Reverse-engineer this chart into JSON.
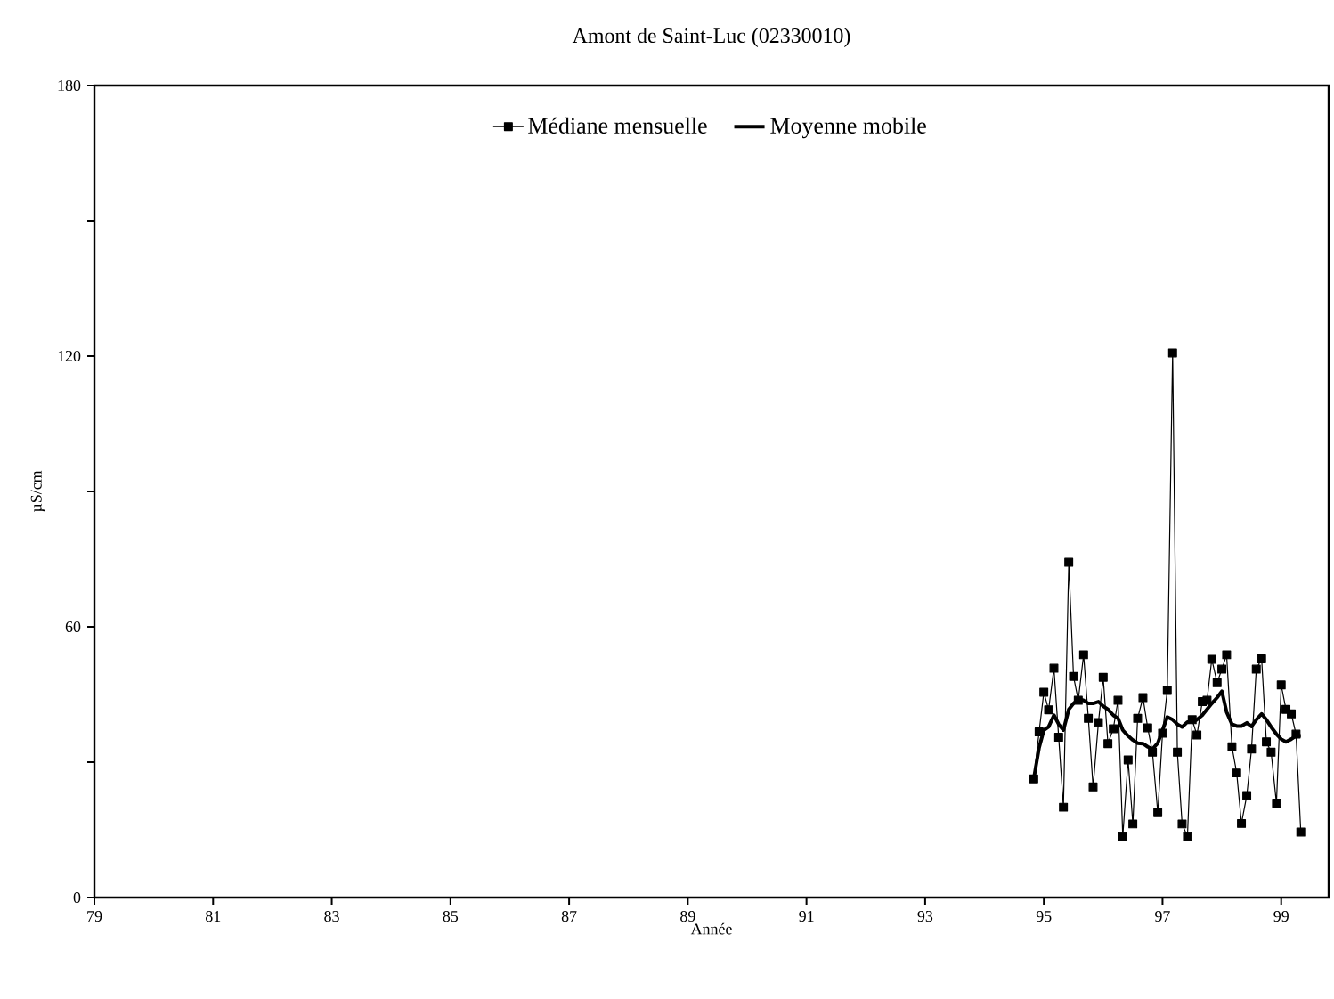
{
  "chart_data": {
    "type": "line",
    "title": "Amont de Saint-Luc (02330010)",
    "xlabel": "Année",
    "ylabel": "µS/cm",
    "xlim": [
      79,
      99.8
    ],
    "xticks": [
      79,
      81,
      83,
      85,
      87,
      89,
      91,
      93,
      95,
      97,
      99
    ],
    "ylim": [
      0,
      180
    ],
    "yticks": [
      0,
      {
        "value": 30,
        "label": null
      },
      60,
      {
        "value": 90,
        "label": null
      },
      120,
      {
        "value": 150,
        "label": null
      },
      180
    ],
    "grid": false,
    "legend": "top",
    "series": [
      {
        "name": "Médiane mensuelle",
        "color": "#000000",
        "marker": "square",
        "line_style": "solid",
        "x": [
          94.83,
          94.92,
          95.0,
          95.08,
          95.17,
          95.25,
          95.33,
          95.42,
          95.5,
          95.58,
          95.67,
          95.75,
          95.83,
          95.92,
          96.0,
          96.08,
          96.17,
          96.25,
          96.33,
          96.42,
          96.5,
          96.58,
          96.67,
          96.75,
          96.83,
          96.92,
          97.0,
          97.08,
          97.17,
          97.25,
          97.33,
          97.42,
          97.5,
          97.58,
          97.67,
          97.75,
          97.83,
          97.92,
          98.0,
          98.08,
          98.17,
          98.25,
          98.33,
          98.42,
          98.5,
          98.58,
          98.67,
          98.75,
          98.83,
          98.92,
          99.0,
          99.08,
          99.17,
          99.25,
          99.33
        ],
        "values": [
          26.3,
          36.7,
          45.5,
          41.6,
          50.8,
          35.5,
          20.0,
          74.3,
          49.0,
          43.7,
          53.8,
          39.7,
          24.5,
          38.8,
          48.8,
          34.1,
          37.4,
          43.7,
          13.5,
          30.5,
          16.3,
          39.7,
          44.3,
          37.6,
          32.2,
          18.8,
          36.4,
          45.9,
          120.7,
          32.2,
          16.3,
          13.5,
          39.4,
          36.0,
          43.4,
          43.7,
          52.8,
          47.6,
          50.6,
          53.8,
          33.4,
          27.6,
          16.4,
          22.6,
          32.9,
          50.6,
          52.9,
          34.5,
          32.2,
          20.9,
          47.1,
          41.7,
          40.7,
          36.2,
          14.5
        ]
      },
      {
        "name": "Moyenne mobile",
        "color": "#000000",
        "marker": "none",
        "line_style": "solid",
        "x": [
          94.83,
          94.92,
          95.0,
          95.08,
          95.17,
          95.25,
          95.33,
          95.42,
          95.5,
          95.58,
          95.67,
          95.75,
          95.83,
          95.92,
          96.0,
          96.08,
          96.17,
          96.25,
          96.33,
          96.42,
          96.5,
          96.58,
          96.67,
          96.75,
          96.83,
          96.92,
          97.0,
          97.08,
          97.17,
          97.25,
          97.33,
          97.42,
          97.5,
          97.58,
          97.67,
          97.75,
          97.83,
          97.92,
          98.0,
          98.08,
          98.17,
          98.25,
          98.33,
          98.42,
          98.5,
          98.58,
          98.67,
          98.75,
          98.83,
          98.92,
          99.0,
          99.08,
          99.17,
          99.25,
          99.33
        ],
        "values": [
          26.3,
          33.2,
          37.1,
          37.8,
          40.4,
          38.4,
          37.1,
          41.7,
          43.0,
          43.9,
          43.7,
          43.0,
          43.0,
          43.4,
          42.4,
          41.7,
          40.4,
          39.7,
          37.1,
          35.8,
          34.9,
          34.2,
          34.1,
          33.4,
          32.9,
          34.2,
          37.1,
          40.0,
          39.4,
          38.4,
          37.8,
          38.9,
          39.0,
          39.4,
          40.4,
          41.7,
          43.0,
          44.3,
          45.7,
          41.1,
          38.4,
          38.0,
          38.0,
          38.7,
          37.9,
          39.4,
          40.7,
          39.4,
          37.8,
          36.2,
          35.1,
          34.5,
          35.1,
          35.8,
          35.8
        ]
      }
    ]
  }
}
